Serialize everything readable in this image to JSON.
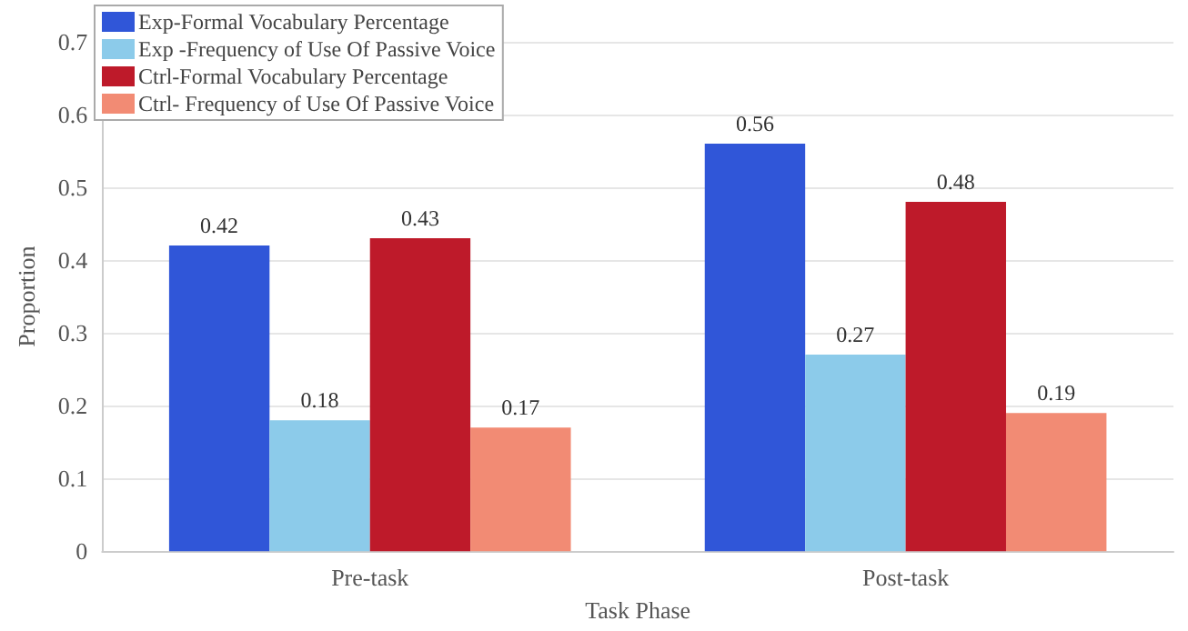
{
  "chart_data": {
    "type": "bar",
    "xlabel": "Task Phase",
    "ylabel": "Proportion",
    "categories": [
      "Pre-task",
      "Post-task"
    ],
    "series": [
      {
        "name": "Exp-Formal Vocabulary Percentage",
        "color": "#3056d8",
        "values": [
          0.42,
          0.56
        ]
      },
      {
        "name": "Exp -Frequency of Use Of Passive Voice",
        "color": "#8ccbea",
        "values": [
          0.18,
          0.27
        ]
      },
      {
        "name": "Ctrl-Formal Vocabulary Percentage",
        "color": "#be1a2a",
        "values": [
          0.43,
          0.48
        ]
      },
      {
        "name": "Ctrl- Frequency of Use Of Passive Voice",
        "color": "#f28b74",
        "values": [
          0.17,
          0.19
        ]
      }
    ],
    "ylim": [
      0,
      0.7
    ],
    "yticks": [
      0,
      0.1,
      0.2,
      0.3,
      0.4,
      0.5,
      0.6,
      0.7
    ],
    "grid": "y",
    "legend": "top left",
    "data_labels": true
  }
}
